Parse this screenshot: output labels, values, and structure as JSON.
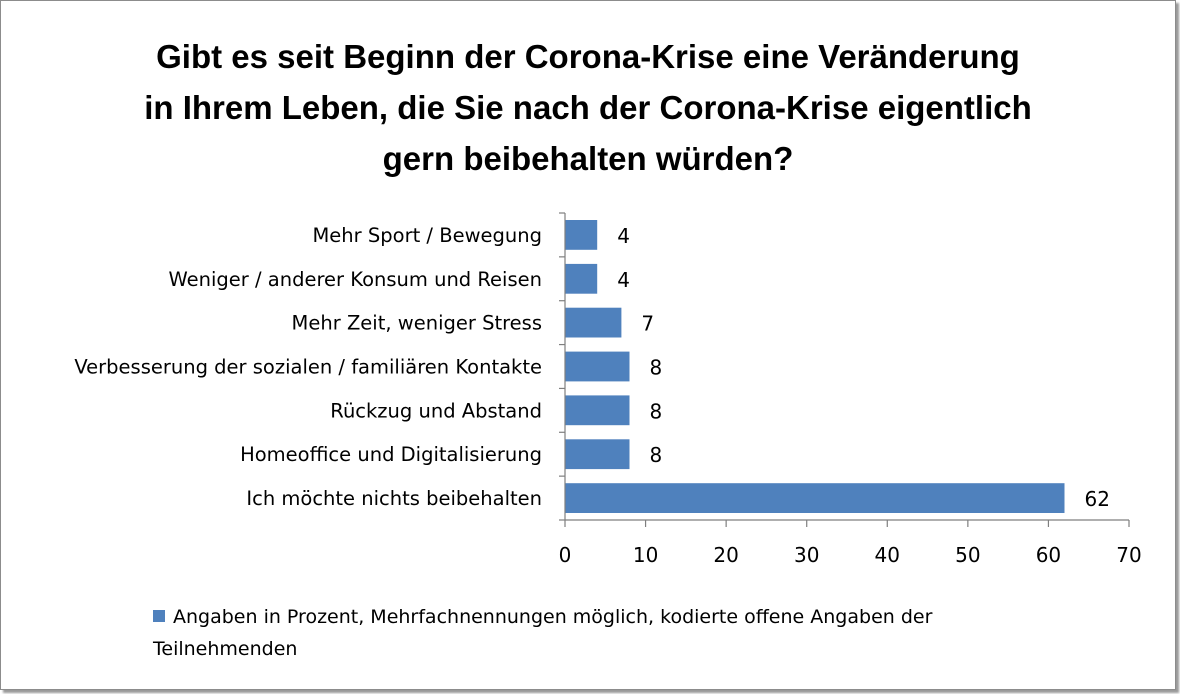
{
  "chart_data": {
    "type": "bar",
    "orientation": "horizontal",
    "title_lines": [
      "Gibt es seit Beginn der Corona-Krise eine Veränderung",
      "in Ihrem Leben, die Sie nach der Corona-Krise eigentlich",
      "gern beibehalten würden?"
    ],
    "categories": [
      "Mehr Sport / Bewegung",
      "Weniger / anderer Konsum und Reisen",
      "Mehr Zeit, weniger Stress",
      "Verbesserung der sozialen / familiären Kontakte",
      "Rückzug und Abstand",
      "Homeoffice und Digitalisierung",
      "Ich möchte nichts beibehalten"
    ],
    "series": [
      {
        "name": "Angaben in Prozent, Mehrfachnennungen möglich, kodierte offene Angaben der Teilnehmenden",
        "values": [
          4,
          4,
          7,
          8,
          8,
          8,
          62
        ],
        "color": "#4f81bd"
      }
    ],
    "xlim": [
      0,
      70
    ],
    "xticks": [
      0,
      10,
      20,
      30,
      40,
      50,
      60,
      70
    ],
    "data_labels": true,
    "grid": false,
    "legend_position": "bottom"
  }
}
